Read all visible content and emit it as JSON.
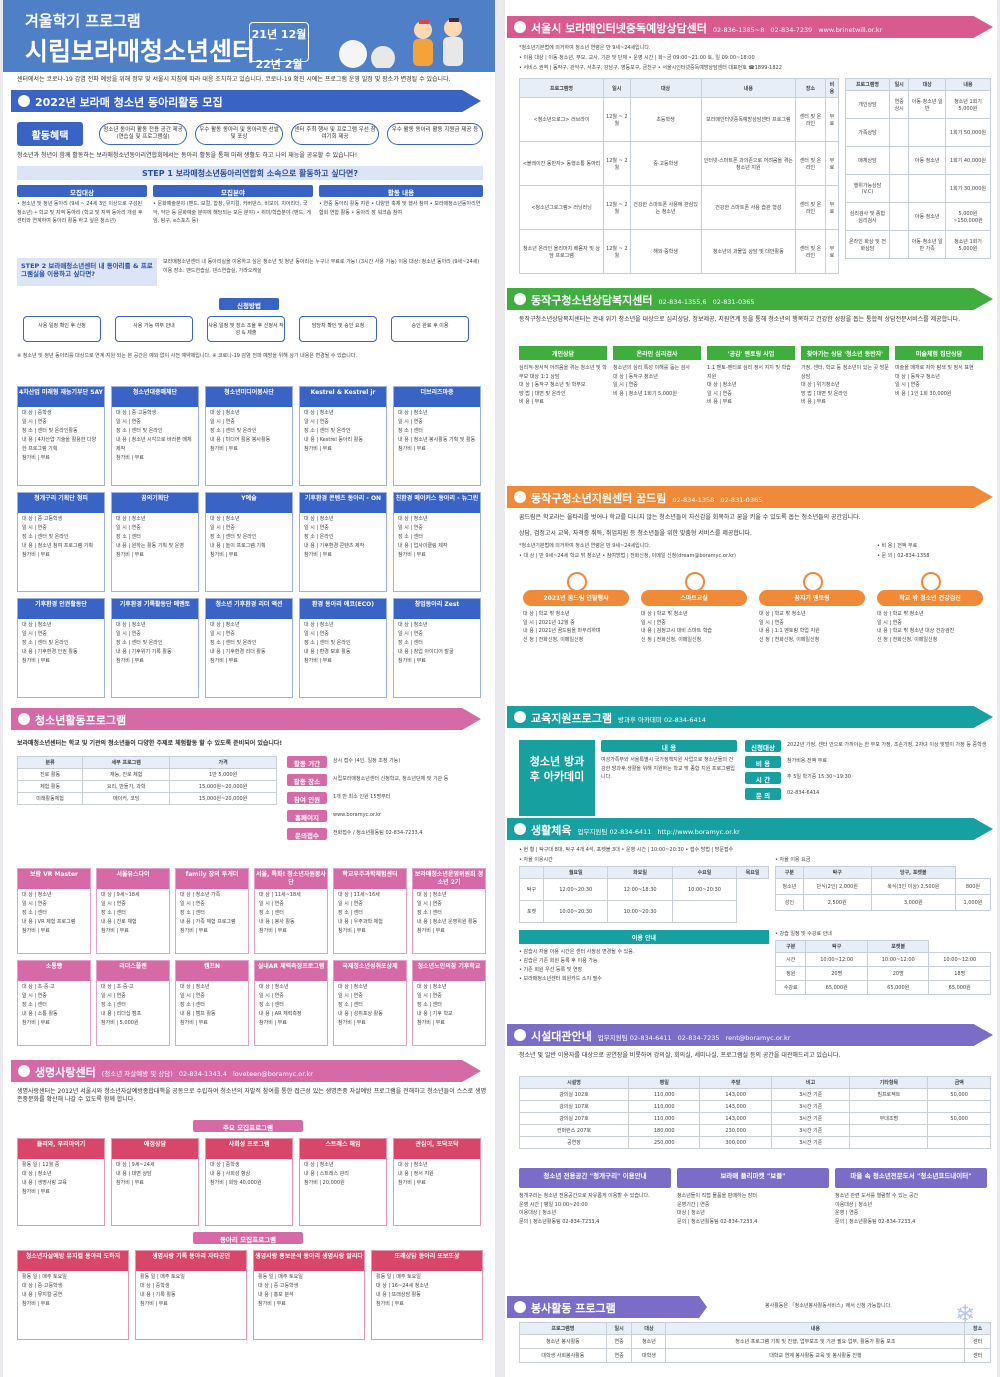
{
  "left": {
    "header": {
      "subtitle": "겨울학기 프로그램",
      "title": "시립보라매청소년센터",
      "date_line1": "21년 12월~",
      "date_line2": "22년 2월"
    },
    "intro": "센터에서는 코로나-19 감염 전파 예방을 위해 정부 및 서울시 지침에 따라 대응 조치하고 있습니다. 코로나-19 확진 시에는 프로그램 운영 일정 및 장소가 변경될 수 있습니다.",
    "club": {
      "banner": "2022년 보라매 청소년 동아리활동 모집",
      "benefit_btn": "활동혜택",
      "benefits": [
        "청소년 동아리 활동 전용 공간 제공 (연습실 및 프로그램실)",
        "우수 활동 동아리 및 동아리원 선발 및 포상",
        "센터 주최 행사 및 프로그램 우선 참여기회 제공",
        "우수 활동 동아리 활동 지원금 제공 등"
      ],
      "lead": "청소년과 청년이 함께 활동하는 보라매청소년동아리연합회에서는 동아리 활동을 통해 미래 생활도 하고 나의 재능을 공유할 수 있습니다!",
      "step1": "STEP 1 보라매청소년동아리연합회 소속으로 활동하고 싶다면?",
      "th": [
        "모집대상",
        "모집분야",
        "활동 내용"
      ],
      "td": [
        "• 청소년 및 청년 동아리 (9세 ~ 24세 3인 이상으로 구성된 청소년) • 학교 및 지역 동아리 (학교 및 지역 동아리 개설 후 센터와 연계하여 동아리 활동 하고 싶은 청소년)",
        "• 문화예술분야 (밴드, 보컬, 합창, 뮤지컬, 커버댄스, 비보이, 치어리더, 국악, 악단 등 문화예술 분야에 해당되는 모든 분야) • 취미/학습분야 (밴드, 게임, 탐구, e스포츠 등)",
        "• 연중 동아리 활동 지원 • 다양한 축제 및 행사 참여 • 보라매청소년동아리연합회 연합 활동 • 동아리 장 워크숍 참여"
      ],
      "step2": "STEP 2 보라매청소년센터 내 동아리를 & 프로그램실을 이용하고 싶다면?",
      "step2_text": "보라매청소년센터 내 동아리실을 이용하고 싶은 청소년 및 청년 동아리는 누구나 무료로 가능! (3시간 사용 가능) 이용 대상: 청소년 동아리 (9세~24세) 이용 장소: 밴드연습실, 댄스연습실, 가라오케실",
      "apply": "신청방법",
      "flow": [
        "사용 일정 확인 후 신청",
        "사용 가능 여부 안내",
        "사용 일정 및 장소 조율 후 신청서 작성 & 제출",
        "담당자 확인 및 승인 요청",
        "승인 완료 후 이용"
      ],
      "notes": "※ 청소년 및 청년 동아리를 대상으로 연계·지원 되는 본 공간은 예외 없이 사전 예약제입니다. ※ 코로나-19 감염 전파 예방을 위해 상기 내용은 변경될 수 있습니다."
    },
    "clubs": [
      {
        "t": "4차산업 미래형 재능기부단 SAY",
        "l": [
          "대 상 | 중학생",
          "일 시 | 연중",
          "장 소 | 센터 및 온라인활동",
          "내 용 | 4차산업 기술을 활용한 다양한 프로그램 기획",
          "참가비 | 무료"
        ]
      },
      {
        "t": "청소년대중매체단",
        "l": [
          "대 상 | 중·고등학생",
          "일 시 | 연중",
          "장 소 | 센터 및 온라인",
          "내 용 | 청소년 시각으로 바라본 매체 제작",
          "참가비 | 무료"
        ]
      },
      {
        "t": "청소년미디어봉사단",
        "l": [
          "대 상 | 청소년",
          "일 시 | 연중",
          "장 소 | 센터 및 온라인",
          "내 용 | 미디어 활용 봉사활동",
          "참가비 | 무료"
        ]
      },
      {
        "t": "Kestrel & Kestrel jr",
        "l": [
          "대 상 | 청소년",
          "일 시 | 연중",
          "장 소 | 센터 및 온라인",
          "내 용 | Kestrel 동아리 활동",
          "참가비 | 무료"
        ]
      },
      {
        "t": "더브리즈마중",
        "l": [
          "대 상 | 청소년",
          "일 시 | 연중",
          "장 소 | 센터",
          "내 용 | 청소년 봉사활동 기획 및 활동",
          "참가비 | 무료"
        ]
      },
      {
        "t": "청개구리 기획단 청피",
        "l": [
          "대 상 | 중·고등학생",
          "일 시 | 연중",
          "장 소 | 센터 및 온라인",
          "내 용 | 청소년 참여 프로그램 기획",
          "참가비 | 무료"
        ]
      },
      {
        "t": "꿈의기획단",
        "l": [
          "대 상 | 청소년",
          "일 시 | 연중",
          "장 소 | 센터",
          "내 용 | 원하는 활동 기획 및 운영",
          "참가비 | 무료"
        ]
      },
      {
        "t": "Y예술",
        "l": [
          "대 상 | 청소년",
          "일 시 | 연중",
          "장 소 | 센터 및 온라인",
          "내 용 | 놀이 프로그램 기획",
          "참가비 | 무료"
        ]
      },
      {
        "t": "기후환경 콘텐츠 동아리 - ON",
        "l": [
          "대 상 | 청소년",
          "일 시 | 연중",
          "장 소 | 온라인",
          "내 용 | 기후환경 콘텐츠 제작",
          "참가비 | 무료"
        ]
      },
      {
        "t": "친환경 메이커스 동아리 - 뉴그린",
        "l": [
          "대 상 | 청소년",
          "일 시 | 연중",
          "장 소 | 센터",
          "내 용 | 업사이클링 제작",
          "참가비 | 무료"
        ]
      },
      {
        "t": "기후환경 인권활동단",
        "l": [
          "대 상 | 청소년",
          "일 시 | 연중",
          "장 소 | 센터 및 온라인",
          "내 용 | 기후환경 인권 활동",
          "참가비 | 무료"
        ]
      },
      {
        "t": "기후환경 기록활동단 메멘토",
        "l": [
          "대 상 | 청소년",
          "일 시 | 연중",
          "장 소 | 센터 및 온라인",
          "내 용 | 기후위기 기록 활동",
          "참가비 | 무료"
        ]
      },
      {
        "t": "청소년 기후환경 리더 액션",
        "l": [
          "대 상 | 청소년",
          "일 시 | 연중",
          "장 소 | 센터 및 온라인",
          "내 용 | 기후환경 리더 활동",
          "참가비 | 무료"
        ]
      },
      {
        "t": "환경 동아리 에코(ECO)",
        "l": [
          "대 상 | 청소년",
          "일 시 | 연중",
          "장 소 | 센터 및 온라인",
          "내 용 | 환경 보호 활동",
          "참가비 | 무료"
        ]
      },
      {
        "t": "창업동아리 Zest",
        "l": [
          "대 상 | 청소년",
          "일 시 | 연중",
          "장 소 | 센터",
          "내 용 | 창업 아이디어 발굴",
          "참가비 | 무료"
        ]
      }
    ],
    "activity": {
      "banner": "청소년활동프로그램",
      "lead": "보라매청소년센터는 학교 및 기관의 청소년들이 다양한 주제로 체험활동 할 수 있도록 준비되어 있습니다!",
      "info": [
        {
          "k": "활동 기간",
          "v": "상시 접수 (4인, 일정 조정 가능)"
        },
        {
          "k": "활동 장소",
          "v": "시립보라매청소년센터 신청학교, 청소년단체 및 기관 등"
        },
        {
          "k": "참여 인원",
          "v": "1개 반 최소 인원 15명부터"
        },
        {
          "k": "홈페이지",
          "v": "www.boramyc.or.kr"
        },
        {
          "k": "문의접수",
          "v": "전화접수 / 청소년활동팀 02-834-7233,4"
        }
      ],
      "mini": [
        [
          "분류",
          "세부 프로그램",
          "가격"
        ],
        [
          "진로 활동",
          "재능, 진로 체험",
          "1만 5,000원"
        ],
        [
          "체험 활동",
          "요리, 만들기, 과학",
          "15,000원~20,000원"
        ],
        [
          "미래활동체험",
          "메이커, 코딩",
          "15,000원~20,000원"
        ]
      ]
    },
    "act_cards": [
      {
        "t": "보람 VR Master",
        "l": [
          "대 상 | 청소년",
          "일 시 | 연중",
          "장 소 | 센터",
          "내 용 | VR 체험 프로그램",
          "참가비 | 무료"
        ]
      },
      {
        "t": "서울유스다이",
        "l": [
          "대 상 | 9세~18세",
          "일 시 | 연중",
          "장 소 | 센터",
          "내 용 | 진로 체험",
          "참가비 | 무료"
        ]
      },
      {
        "t": "family 장의 투게더",
        "l": [
          "대 상 | 청소년 가족",
          "일 시 | 연중",
          "장 소 | 센터",
          "내 용 | 가족 체험 프로그램",
          "참가비 | 무료"
        ]
      },
      {
        "t": "서울, 특화! 청소년자원봉사단",
        "l": [
          "대 상 | 11세~18세",
          "일 시 | 연중",
          "장 소 | 센터",
          "내 용 | 봉사 활동",
          "참가비 | 무료"
        ]
      },
      {
        "t": "학교우주과학체험센터",
        "l": [
          "대 상 | 11세~16세",
          "일 시 | 연중",
          "장 소 | 센터",
          "내 용 | 우주과학 체험",
          "참가비 | 무료"
        ]
      },
      {
        "t": "보라매청소년운영위원회 청소년 2기",
        "l": [
          "대 상 | 청소년",
          "일 시 | 연중",
          "장 소 | 센터",
          "내 용 | 청소년 운영위원 활동",
          "참가비 | 무료"
        ]
      },
      {
        "t": "소통빵",
        "l": [
          "대 상 | 초·중·고",
          "일 시 | 연중",
          "장 소 | 센터",
          "내 용 | 소통 활동",
          "참가비 | 무료"
        ]
      },
      {
        "t": "리더스플랜",
        "l": [
          "대 상 | 초·중·고",
          "일 시 | 연중",
          "장 소 | 센터",
          "내 용 | 리더십 캠프",
          "참가비 | 5,000원"
        ]
      },
      {
        "t": "캠프N",
        "l": [
          "대 상 | 청소년",
          "일 시 | 연중",
          "장 소 | 센터",
          "내 용 | 캠프 활동",
          "참가비 | 무료"
        ]
      },
      {
        "t": "실내AR 체력측정프로그램",
        "l": [
          "대 상 | 청소년",
          "일 시 | 연중",
          "장 소 | 센터",
          "내 용 | AR 체력측정",
          "참가비 | 무료"
        ]
      },
      {
        "t": "국제청소년성취포상제",
        "l": [
          "대 상 | 청소년",
          "일 시 | 연중",
          "장 소 | 센터",
          "내 용 | 성취포상 활동",
          "참가비 | 무료"
        ]
      },
      {
        "t": "청소년노인의참 기후학교",
        "l": [
          "대 상 | 청소년",
          "일 시 | 연중",
          "장 소 | 센터",
          "내 용 | 기후 학교",
          "참가비 | 무료"
        ]
      }
    ],
    "life": {
      "banner": "생명사랑센터",
      "banner_sub": "(청소년 자살예방 및 상담)",
      "phone": "02-834-1343,4",
      "email": "loveteen@boramyc.or.kr",
      "lead": "생명사랑센터는 2012년 서울시와 청소년자살예방종합대책을 공동으로 수립하여 청소년의 자발적 참여를 통한 접근성 있는 생명존중 자살예방 프로그램을 전해하고 청소년들이 스스로 생명존중문화를 확산해 나갈 수 있도록 함께 합니다.",
      "main_title": "주요 모집프로그램",
      "club_title": "동아리 모집프로그램",
      "main": [
        {
          "t": "들리와, 우리마이기",
          "l": [
            "활동 일 | 12월 중",
            "대 상 | 청소년",
            "내 용 | 생명사랑 교육",
            "참가비 | 무료"
          ]
        },
        {
          "t": "애정상담",
          "l": [
            "대 상 | 9세~24세",
            "내 용 | 대면 상담",
            "참가비 | 무료"
          ]
        },
        {
          "t": "사회성 프로그램",
          "l": [
            "대 상 | 중학생",
            "내 용 | 사회성 향상",
            "참가비 | 회당 40,000원"
          ]
        },
        {
          "t": "스트레스 해임",
          "l": [
            "대 상 | 청소년",
            "내 용 | 스트레스 관리",
            "참가비 | 20,000원"
          ]
        },
        {
          "t": "관심이, 포닥포닥",
          "l": [
            "대 상 | 청소년",
            "내 용 | 정서 지원",
            "참가비 | 무료"
          ]
        }
      ],
      "club": [
        {
          "t": "청소년자살예방 뮤지컬 동아리 도하지",
          "l": [
            "활동 일 | 매주 토요일",
            "대 상 | 중·고등학생",
            "내 용 | 뮤지컬 공연",
            "참가비 | 무료"
          ]
        },
        {
          "t": "생명사랑 기록 동아리 자타공인",
          "l": [
            "활동 일 | 매주 토요일",
            "대 상 | 중학생",
            "내 용 | 기록 활동",
            "참가비 | 무료"
          ]
        },
        {
          "t": "생명사랑 홍보분석 동아리 생명사랑 알리다",
          "l": [
            "활동 일 | 매주 토요일",
            "대 상 | 중·고등학생",
            "내 용 | 홍보 분석",
            "참가비 | 무료"
          ]
        },
        {
          "t": "또래상담 동아리 또보또상",
          "l": [
            "활동 일 | 매주 토요일",
            "대 상 | 16~24세 청소년",
            "내 용 | 또래상담 활동",
            "참가비 | 무료"
          ]
        }
      ]
    }
  },
  "right": {
    "addiction": {
      "banner": "서울시 보라매인터넷중독예방상담센터",
      "phone": "02-836-1385~8",
      "fax": "02-834-7239",
      "web": "www.brinetwill.or.kr",
      "t1": "*청소년기본법에 의거하여 청소년 연령은 만 9세~24세입니다.",
      "t2": "• 이용 대상 | 이동·청소년, 부모, 교사, 기관 및 단체   • 운영 시간 | 화~금 09:00~21:00 토, 일 09:00~18:00",
      "t3": "• 서비스 권역 | 동작구, 관악구, 서초구, 강남구, 영등포구, 금천구   • 서울시인터넷중독예방상담센터 대표번호 ☎1899-1822",
      "th": [
        "프로그램명",
        "일시",
        "대상",
        "내용",
        "장소",
        "비용"
      ],
      "rows": [
        [
          "<청소년으로그> 러브라이",
          "12월 ~ 2월",
          "초등학생",
          "보라매인터넷중독예방상담센터 프로그램",
          "센터 및 온라인",
          "무료"
        ],
        [
          "<블레이잔 동반자> 동행소통 동아리",
          "12월 ~ 2월",
          "중·고등학생",
          "인터넷·스마트폰 과의존으로 어려움을 겪는 청소년 지원",
          "센터 및 온라인",
          "무료"
        ],
        [
          "<청소년그로그램> 러닝러닝",
          "12월 ~ 2월",
          "건강한 스마트폰 사용에 관심있는 청소년",
          "건강한 스마트폰 사용 습관 형성",
          "센터 및 온라인",
          "무료"
        ],
        [
          "청소년 온라인 올리마치 배움자 및 상담 프로그램",
          "12월 ~ 2월",
          "해외 중학생",
          "청소년의 과몰입 상담 및 대안활동",
          "센터 및 온라인",
          "무료"
        ]
      ],
      "th2": [
        "프로그램명",
        "일시",
        "대상",
        "내용"
      ],
      "rows2": [
        [
          "개인상담",
          "연중 상시",
          "아동·청소년 일반",
          "청소년 1회기 5,000원"
        ],
        [
          "가족상담",
          "",
          "",
          "1회기 50,000원"
        ],
        [
          "매체상담",
          "",
          "아동·청소년",
          "1회기 40,000원"
        ],
        [
          "행위가능상담(V.C)",
          "",
          "",
          "1회기 30,000원"
        ],
        [
          "심리검사 및 종합심리검사",
          "",
          "아동·청소년",
          "5,000원~150,000원"
        ],
        [
          "온라인 화상 및 전화상담",
          "",
          "아동·청소년 일반 가족",
          "청소년 1회기 5,000원"
        ]
      ]
    },
    "dongjak": {
      "banner": "동작구청소년상담복지센터",
      "phone": "02-834-1355,6",
      "fax": "02-831-0365",
      "lead": "동작구청소년상담복지센터는 관내 위기 청소년을 대상으로 심리상담, 정보제공, 지원연계 등을 통해 청소년의 행복하고 건강한 성장을 돕는 통합적 상담전문서비스를 제공합니다.",
      "cols": [
        {
          "t": "개인상담",
          "l": [
            "심리적·정서적 어려움을 겪는 청소년 및 학부모 대상 1:1 상담",
            "대 상 | 동작구 청소년 및 학부모",
            "방 법 | 대면 및 온라인",
            "비 용 | 무료"
          ]
        },
        {
          "t": "온라인 심리검사",
          "l": [
            "청소년의 심리 특성 이해를 돕는 검사",
            "대 상 | 동작구 청소년",
            "일 시 | 연중",
            "비 용 | 청소년 1회기 5,000원"
          ]
        },
        {
          "t": "'공감' 멘토링 사업",
          "l": [
            "1:1 멘토-멘티로 심리 정서 지지 및 학습 지원",
            "대 상 | 청소년",
            "일 시 | 연중",
            "비 용 | 무료"
          ]
        },
        {
          "t": "찾아가는 상담 '청소년 동반자'",
          "l": [
            "가정, 센터, 학교 등 청소년이 있는 곳 방문 상담",
            "대 상 | 위기청소년",
            "방 법 | 대면 및 온라인",
            "비 용 | 무료"
          ]
        },
        {
          "t": "미술체험 집단상담",
          "l": [
            "미술을 매개로 자아 탐색 및 정서 표현",
            "대 상 | 동작구 청소년",
            "일 시 | 연중",
            "비 용 | 1인 1회 30,000원"
          ]
        }
      ]
    },
    "kkumdream": {
      "banner": "동작구청소년지원센터 꿈드림",
      "phone": "02-834-1358",
      "fax": "02-831-0365",
      "lead": "꿈드림은 학교라는 울타리를 벗어나 학교를 다니지 않는 청소년들이 자신감을 회복하고 꿈을 키울 수 있도록 돕는 청소년들의 공간입니다.",
      "sub": "상담, 검정고시 교육, 자격증 취득, 취업지원 등 청소년들을 위한 맞춤형 서비스를 제공합니다.",
      "age": "*청소년기본법에 의거하여 청소년 연령은 만 9세~24세입니다.",
      "target": "• 대 상 | 만 9세~24세 학교 밖 청소년   • 참여방법 | 전화신청, 이메일 신청(dream@boramyc.or.kr)",
      "cost": "• 비 용 | 전액 무료",
      "contact": "• 문 의 | 02-834-1358",
      "progs": [
        {
          "t": "2021년 꿈드림 연말행사",
          "l": [
            "대 상 | 학교 밖 청소년",
            "일 시 | 2021년 12월 중",
            "내 용 | 2021년 꿈드림을 마무리하며",
            "신 청 | 전화신청, 이메일신청"
          ]
        },
        {
          "t": "스마트교실",
          "l": [
            "대 상 | 학교 밖 청소년",
            "일 시 | 연중",
            "내 용 | 검정고시 대비 스마트 학습",
            "신 청 | 전화신청, 이메일신청"
          ]
        },
        {
          "t": "꿈지기 멘토링",
          "l": [
            "대 상 | 학교 밖 청소년",
            "일 시 | 연중",
            "내 용 | 1:1 멘토링 학업 지원",
            "신 청 | 전화신청, 이메일신청"
          ]
        },
        {
          "t": "학교 밖 청소년 건강검진",
          "l": [
            "대 상 | 학교 밖 청소년",
            "일 시 | 연중",
            "내 용 | 학교 밖 청소년 대상 건강검진",
            "신 청 | 전화신청, 이메일신청"
          ]
        }
      ]
    },
    "edu": {
      "banner": "교육지원프로그램",
      "phone": "방과후 아카데미 02-834-6414",
      "name": "청소년 방과후 아카데미",
      "th": "내 용",
      "desc": "여성가족부와 서울특별시 국가정책지원 사업으로 청소년들의 건강한 방과후 생활을 위해 지원하는 학교 밖 종합 지원 프로그램입니다.",
      "info": [
        {
          "k": "신청대상",
          "v": "2022년 가정, 센터 안으로 가까이는 한 부모 가정, 조손가정, 2자녀 이상 맞벌이 가정 등 중학생"
        },
        {
          "k": "비 용",
          "v": "참가비용 전액 무료"
        },
        {
          "k": "시 간",
          "v": "주 5일 학기중 15:30~19:30"
        },
        {
          "k": "문 의",
          "v": "02-834-6414"
        }
      ]
    },
    "sports": {
      "banner": "생활체육",
      "phone": "업무지원팀 02-834-6411",
      "web": "http://www.boramyc.or.kr",
      "line": "• 현 황 | 탁구대 8대, 탁구 4개 4석, 포켓볼 3대  • 운영 시간 | 10:00~20:30  • 접수 방법 | 방문접수",
      "use_title": "• 자율 이용시간",
      "days": [
        "월요일",
        "화요일",
        "수요일",
        "목요일"
      ],
      "use": [
        [
          "탁구",
          "12:00~20:30",
          "12:00~18:30",
          "10:00~20:30"
        ],
        [
          "포켓",
          "10:00~20:30",
          "10:00~20:30",
          ""
        ]
      ],
      "fee_title": "• 자율 이용 요금",
      "fee_th": [
        "구분",
        "탁구",
        "당구, 포켓볼"
      ],
      "fee": [
        [
          "청소년",
          "단식(2인) 2,000원",
          "복식(3인 이상) 2,500원",
          "800원"
        ],
        [
          "성인",
          "2,500원",
          "3,000원",
          "1,000원"
        ]
      ],
      "guide_title": "이용 안내",
      "guide": [
        "• 감습시 자율 이용 시간은 센터 사정상 변경될 수 있음.",
        "• 감습은 기존 회원 등록 후 이용 가능",
        "• 기존 회원 우선 등록 및 연장",
        "• 보라매청소년센터 회원카드 소지 필수"
      ],
      "reg_title": "• 강습 일정 및 수강료 안내",
      "reg_th": [
        "구분",
        "탁구",
        "포켓볼"
      ],
      "reg_days": [
        "월",
        "수",
        "목",
        "화",
        "목",
        "금",
        "토"
      ],
      "reg": [
        [
          "시간",
          "10:00~12:00",
          "10:00~12:00",
          "10:00~12:00"
        ],
        [
          "정원",
          "20명",
          "20명",
          "18명"
        ],
        [
          "수강료",
          "65,000원",
          "65,000원",
          "65,000원"
        ]
      ]
    },
    "facility": {
      "banner": "시설대관안내",
      "phone": "업무지원팀 02-834-6411",
      "fax": "02-834-7235",
      "email": "rent@boramyc.or.kr",
      "lead": "청소년 및 일반 이용자를 대상으로 공연장을 비롯하여 강의실, 회의실, 세미나실, 프로그램실 등의 공간을 대관해드리고 있습니다.",
      "th": [
        "시설명",
        "평일",
        "주말",
        "비고",
        "기타항목",
        "금액"
      ],
      "rows": [
        [
          "강의실 102호",
          "110,000",
          "143,000",
          "3시간 기준",
          "빔프로젝트",
          "50,000"
        ],
        [
          "강의실 107호",
          "110,000",
          "143,000",
          "3시간 기준",
          "",
          ""
        ],
        [
          "강의실 207호",
          "110,000",
          "143,000",
          "3시간 기준",
          "무대조명",
          "50,000"
        ],
        [
          "컨퍼런스 207호",
          "180,000",
          "230,000",
          "3시간 기준",
          "",
          ""
        ],
        [
          "공연장",
          "250,000",
          "300,000",
          "3시간 기준",
          "",
          ""
        ]
      ],
      "boxes": [
        {
          "t": "청소년 전용공간 \"청개구리\" 이용안내",
          "l": [
            "청개구리는 청소년 전용공간으로 자유롭게 이용할 수 있습니다.",
            "운영 시간 | 평일 10:00~20:00",
            "이용대상 | 청소년",
            "문의 | 청소년활동팀 02-834-7233,4"
          ]
        },
        {
          "t": "보라매 플리마켓 \"보플\"",
          "l": [
            "청소년들이 직접 물품을 판매하는 장터",
            "운영기간 | 연중",
            "대상 | 청소년",
            "문의 | 청소년활동팀 02-834-7233,4"
          ]
        },
        {
          "t": "마을 속 청소년전문도서 \"청소년코드내이터\"",
          "l": [
            "청소년 관련 도서를 열람할 수 있는 공간",
            "이용대상 | 청소년",
            "운영 | 연중",
            "문의 | 청소년활동팀 02-834-7233,4"
          ]
        }
      ]
    },
    "volunteer": {
      "banner": "봉사활동 프로그램",
      "note": "봉사활동은 「청소년봉사활동서비스」에서 신청 가능합니다.",
      "th": [
        "프로그램명",
        "일시",
        "대상",
        "내용",
        "장소"
      ],
      "rows": [
        [
          "청소년 봉사활동",
          "연중",
          "청소년",
          "청소년 프로그램 기획 및 진행, 업무보조 및 기관 필요 업무, 활동가 활동 보조",
          "센터"
        ],
        [
          "대학생 사회봉사활동",
          "연중",
          "대학생",
          "대학교 연계 봉사활동 교육 및 봉사활동 진행",
          "센터"
        ]
      ]
    }
  }
}
